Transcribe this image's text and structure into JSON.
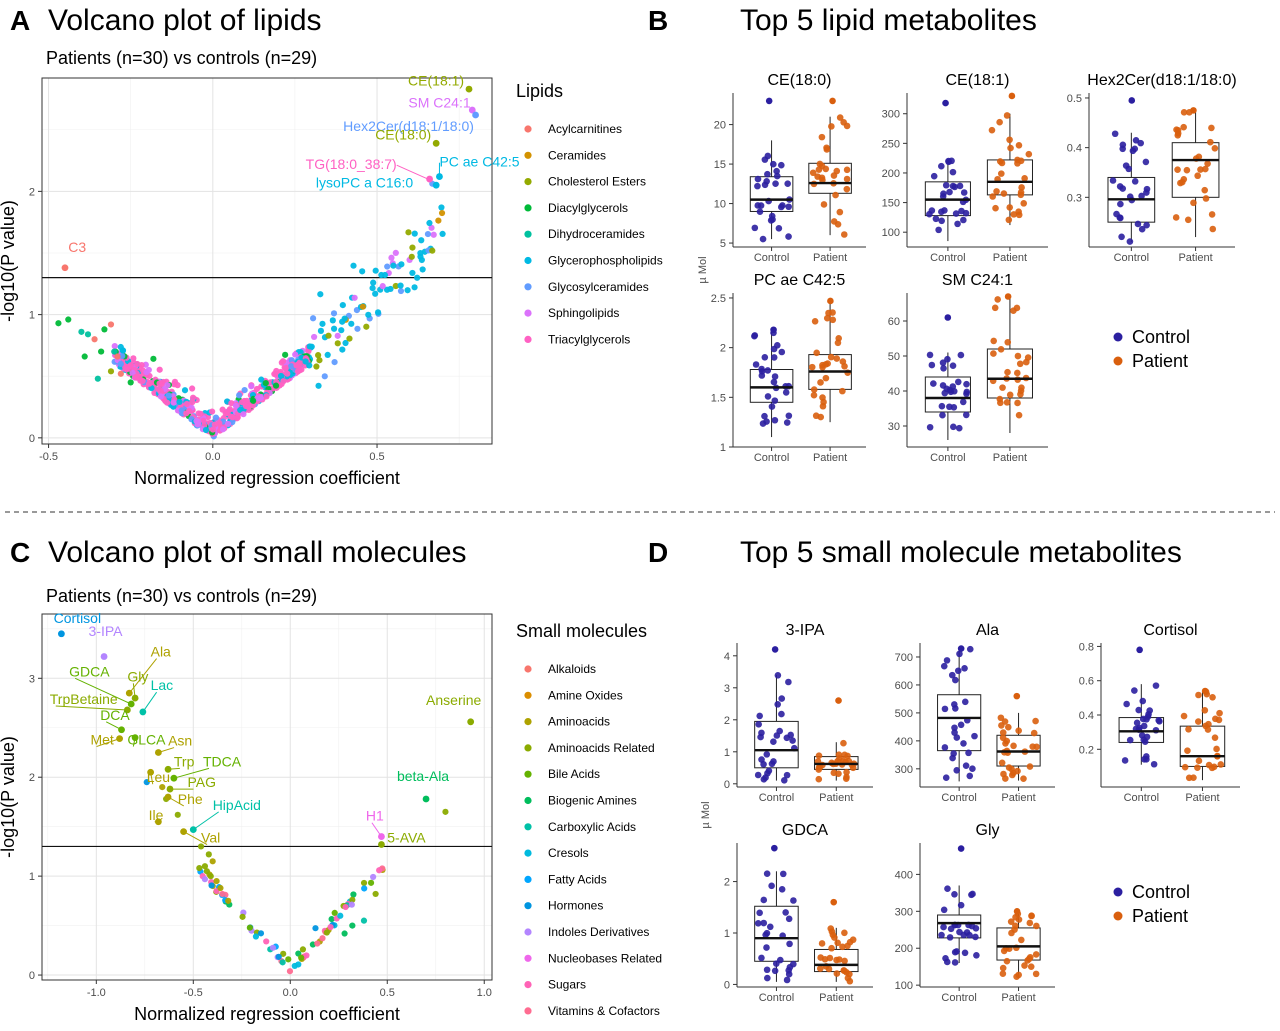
{
  "panels": {
    "A": {
      "letter": "A",
      "title": "Volcano plot of lipids",
      "subtitle": "Patients (n=30) vs controls (n=29)"
    },
    "B": {
      "letter": "B",
      "title": "Top 5 lipid metabolites"
    },
    "C": {
      "letter": "C",
      "title": "Volcano plot of small molecules",
      "subtitle": "Patients (n=30) vs controls (n=29)"
    },
    "D": {
      "letter": "D",
      "title": "Top 5 small molecule metabolites"
    }
  },
  "chart_data": [
    {
      "id": "A",
      "type": "scatter",
      "subtype": "volcano",
      "xlabel": "Normalized regression coefficient",
      "ylabel": "-log10(P value)",
      "xlim": [
        -0.52,
        0.85
      ],
      "ylim": [
        -0.05,
        2.92
      ],
      "xticks": [
        -0.5,
        0,
        0.5
      ],
      "xtick_labels": [
        "-0.5",
        "0.0",
        "0.5"
      ],
      "yticks": [
        0,
        1,
        2
      ],
      "threshold_y": 1.3,
      "grid": true,
      "legend_title": "Lipids",
      "legend_position": "right",
      "classes": [
        {
          "name": "Acylcarnitines",
          "color": "#F8766D"
        },
        {
          "name": "Ceramides",
          "color": "#D39200"
        },
        {
          "name": "Cholesterol Esters",
          "color": "#93AA00"
        },
        {
          "name": "Diacylglycerols",
          "color": "#00BA38"
        },
        {
          "name": "Dihydroceramides",
          "color": "#00C19F"
        },
        {
          "name": "Glycerophospholipids",
          "color": "#00B9E3"
        },
        {
          "name": "Glycosylceramides",
          "color": "#619CFF"
        },
        {
          "name": "Sphingolipids",
          "color": "#DB72FB"
        },
        {
          "name": "Triacylglycerols",
          "color": "#FF61C3"
        }
      ],
      "labeled_points": [
        {
          "label": "C3",
          "x": -0.45,
          "y": 1.38,
          "cls": 0
        },
        {
          "label": "CE(18:1)",
          "x": 0.78,
          "y": 2.83,
          "cls": 2
        },
        {
          "label": "SM C24:1",
          "x": 0.79,
          "y": 2.66,
          "cls": 7
        },
        {
          "label": "Hex2Cer(d18:1/18:0)",
          "x": 0.8,
          "y": 2.62,
          "cls": 6
        },
        {
          "label": "CE(18:0)",
          "x": 0.68,
          "y": 2.39,
          "cls": 2
        },
        {
          "label": "TG(18:0_38:7)",
          "x": 0.66,
          "y": 2.1,
          "cls": 8
        },
        {
          "label": "PC ae C42:5",
          "x": 0.69,
          "y": 2.12,
          "cls": 5
        },
        {
          "label": "lysoPC a C16:0",
          "x": 0.68,
          "y": 2.05,
          "cls": 5
        }
      ]
    },
    {
      "id": "B",
      "type": "boxplot",
      "ylabel": "µ Mol",
      "groups": [
        "Control",
        "Patient"
      ],
      "group_colors": [
        "#2B1FA0",
        "#D95F0E"
      ],
      "legend": [
        "Control",
        "Patient"
      ],
      "panels": [
        {
          "title": "CE(18:0)",
          "ylim": [
            4.5,
            24
          ],
          "yticks": [
            5,
            10,
            15,
            20
          ],
          "boxes": [
            {
              "q1": 9.0,
              "med": 10.5,
              "q3": 13.4,
              "lo": 5.5,
              "hi": 18.0,
              "max": 23.0
            },
            {
              "q1": 11.3,
              "med": 12.6,
              "q3": 15.1,
              "lo": 6.0,
              "hi": 21.0,
              "max": 23.0
            }
          ]
        },
        {
          "title": "CE(18:1)",
          "ylim": [
            75,
            335
          ],
          "yticks": [
            100,
            150,
            200,
            250,
            300
          ],
          "boxes": [
            {
              "q1": 128,
              "med": 155,
              "q3": 185,
              "lo": 85,
              "hi": 222,
              "max": 318
            },
            {
              "q1": 163,
              "med": 185,
              "q3": 222,
              "lo": 112,
              "hi": 300,
              "max": 330
            }
          ]
        },
        {
          "title": "Hex2Cer(d18:1/18:0)",
          "ylim": [
            0.2,
            0.51
          ],
          "yticks": [
            0.3,
            0.4,
            0.5
          ],
          "boxes": [
            {
              "q1": 0.25,
              "med": 0.296,
              "q3": 0.34,
              "lo": 0.21,
              "hi": 0.43,
              "max": 0.495
            },
            {
              "q1": 0.3,
              "med": 0.375,
              "q3": 0.41,
              "lo": 0.22,
              "hi": 0.475,
              "max": 0.475
            }
          ]
        },
        {
          "title": "PC ae C42:5",
          "ylim": [
            1.0,
            2.55
          ],
          "yticks": [
            1.0,
            1.5,
            2.0,
            2.5
          ],
          "boxes": [
            {
              "q1": 1.45,
              "med": 1.6,
              "q3": 1.78,
              "lo": 1.1,
              "hi": 2.18,
              "max": 2.18
            },
            {
              "q1": 1.58,
              "med": 1.76,
              "q3": 1.93,
              "lo": 1.25,
              "hi": 2.47,
              "max": 2.47
            }
          ]
        },
        {
          "title": "SM C24:1",
          "ylim": [
            24,
            68
          ],
          "yticks": [
            30,
            40,
            50,
            60
          ],
          "boxes": [
            {
              "q1": 34,
              "med": 38,
              "q3": 44,
              "lo": 26,
              "hi": 51,
              "max": 61
            },
            {
              "q1": 38,
              "med": 43.5,
              "q3": 52,
              "lo": 28,
              "hi": 67,
              "max": 67
            }
          ]
        }
      ]
    },
    {
      "id": "C",
      "type": "scatter",
      "subtype": "volcano",
      "xlabel": "Normalized regression coefficient",
      "ylabel": "-log10(P value)",
      "xlim": [
        -1.28,
        1.04
      ],
      "ylim": [
        -0.05,
        3.65
      ],
      "xticks": [
        -1.0,
        -0.5,
        0,
        0.5,
        1.0
      ],
      "xtick_labels": [
        "-1.0",
        "-0.5",
        "0.0",
        "0.5",
        "1.0"
      ],
      "yticks": [
        0,
        1,
        2,
        3
      ],
      "threshold_y": 1.3,
      "grid": true,
      "legend_title": "Small molecules",
      "legend_position": "right",
      "classes": [
        {
          "name": "Alkaloids",
          "color": "#F8766D"
        },
        {
          "name": "Amine Oxides",
          "color": "#DB8E00"
        },
        {
          "name": "Aminoacids",
          "color": "#AEA200"
        },
        {
          "name": "Aminoacids Related",
          "color": "#8BAB00"
        },
        {
          "name": "Bile Acids",
          "color": "#64B200"
        },
        {
          "name": "Biogenic Amines",
          "color": "#00BD5C"
        },
        {
          "name": "Carboxylic Acids",
          "color": "#00C1A7"
        },
        {
          "name": "Cresols",
          "color": "#00BADE"
        },
        {
          "name": "Fatty Acids",
          "color": "#00A6FF"
        },
        {
          "name": "Hormones",
          "color": "#0095E0"
        },
        {
          "name": "Indoles Derivatives",
          "color": "#B385FF"
        },
        {
          "name": "Nucleobases Related",
          "color": "#EF67EB"
        },
        {
          "name": "Sugars",
          "color": "#FF63B6"
        },
        {
          "name": "Vitamins & Cofactors",
          "color": "#FF6C91"
        }
      ],
      "labeled_points": [
        {
          "label": "Cortisol",
          "x": -1.18,
          "y": 3.45,
          "cls": 9
        },
        {
          "label": "3-IPA",
          "x": -0.96,
          "y": 3.22,
          "cls": 10
        },
        {
          "label": "Ala",
          "x": -0.83,
          "y": 2.85,
          "cls": 2
        },
        {
          "label": "Gly",
          "x": -0.8,
          "y": 2.8,
          "cls": 3
        },
        {
          "label": "GDCA",
          "x": -0.82,
          "y": 2.74,
          "cls": 4
        },
        {
          "label": "TrpBetaine",
          "x": -0.84,
          "y": 2.68,
          "cls": 3
        },
        {
          "label": "Lac",
          "x": -0.76,
          "y": 2.66,
          "cls": 6
        },
        {
          "label": "DCA",
          "x": -0.87,
          "y": 2.48,
          "cls": 4
        },
        {
          "label": "Met",
          "x": -0.88,
          "y": 2.39,
          "cls": 2
        },
        {
          "label": "GLCA",
          "x": -0.8,
          "y": 2.4,
          "cls": 4
        },
        {
          "label": "Asn",
          "x": -0.68,
          "y": 2.25,
          "cls": 2
        },
        {
          "label": "Trp",
          "x": -0.63,
          "y": 2.08,
          "cls": 3
        },
        {
          "label": "TDCA",
          "x": -0.6,
          "y": 1.99,
          "cls": 4
        },
        {
          "label": "Leu",
          "x": -0.72,
          "y": 2.05,
          "cls": 2
        },
        {
          "label": "PAG",
          "x": -0.62,
          "y": 1.88,
          "cls": 3
        },
        {
          "label": "Phe",
          "x": -0.63,
          "y": 1.8,
          "cls": 2
        },
        {
          "label": "Ile",
          "x": -0.68,
          "y": 1.55,
          "cls": 2
        },
        {
          "label": "HipAcid",
          "x": -0.5,
          "y": 1.47,
          "cls": 6
        },
        {
          "label": "Val",
          "x": -0.55,
          "y": 1.45,
          "cls": 2
        },
        {
          "label": "Anserine",
          "x": 0.93,
          "y": 2.56,
          "cls": 3
        },
        {
          "label": "beta-Ala",
          "x": 0.7,
          "y": 1.78,
          "cls": 5
        },
        {
          "label": "H1",
          "x": 0.47,
          "y": 1.4,
          "cls": 11
        },
        {
          "label": "5-AVA",
          "x": 0.47,
          "y": 1.32,
          "cls": 3
        }
      ]
    },
    {
      "id": "D",
      "type": "boxplot",
      "ylabel": "µ Mol",
      "groups": [
        "Control",
        "Patient"
      ],
      "group_colors": [
        "#2B1FA0",
        "#D95F0E"
      ],
      "legend": [
        "Control",
        "Patient"
      ],
      "panels": [
        {
          "title": "3-IPA",
          "ylim": [
            -0.1,
            4.4
          ],
          "yticks": [
            0,
            1,
            2,
            3,
            4
          ],
          "boxes": [
            {
              "q1": 0.5,
              "med": 1.05,
              "q3": 1.95,
              "lo": 0.1,
              "hi": 3.4,
              "max": 4.2
            },
            {
              "q1": 0.45,
              "med": 0.62,
              "q3": 0.85,
              "lo": 0.1,
              "hi": 1.3,
              "max": 2.6
            }
          ]
        },
        {
          "title": "Ala",
          "ylim": [
            235,
            750
          ],
          "yticks": [
            300,
            400,
            500,
            600,
            700
          ],
          "boxes": [
            {
              "q1": 365,
              "med": 482,
              "q3": 565,
              "lo": 255,
              "hi": 730,
              "max": 730
            },
            {
              "q1": 310,
              "med": 362,
              "q3": 420,
              "lo": 258,
              "hi": 500,
              "max": 560
            }
          ]
        },
        {
          "title": "Cortisol",
          "ylim": [
            -0.02,
            0.82
          ],
          "yticks": [
            0.2,
            0.4,
            0.6,
            0.8
          ],
          "boxes": [
            {
              "q1": 0.24,
              "med": 0.305,
              "q3": 0.385,
              "lo": 0.11,
              "hi": 0.58,
              "max": 0.78
            },
            {
              "q1": 0.1,
              "med": 0.16,
              "q3": 0.335,
              "lo": 0.02,
              "hi": 0.54,
              "max": 0.54
            }
          ]
        },
        {
          "title": "GDCA",
          "ylim": [
            -0.05,
            2.75
          ],
          "yticks": [
            0,
            1,
            2
          ],
          "boxes": [
            {
              "q1": 0.45,
              "med": 0.9,
              "q3": 1.52,
              "lo": 0.05,
              "hi": 2.2,
              "max": 2.65
            },
            {
              "q1": 0.25,
              "med": 0.38,
              "q3": 0.68,
              "lo": 0.05,
              "hi": 1.1,
              "max": 1.6
            }
          ]
        },
        {
          "title": "Gly",
          "ylim": [
            95,
            485
          ],
          "yticks": [
            100,
            200,
            300,
            400
          ],
          "boxes": [
            {
              "q1": 228,
              "med": 268,
              "q3": 290,
              "lo": 160,
              "hi": 370,
              "max": 470
            },
            {
              "q1": 168,
              "med": 205,
              "q3": 255,
              "lo": 120,
              "hi": 300,
              "max": 300
            }
          ]
        }
      ]
    }
  ]
}
